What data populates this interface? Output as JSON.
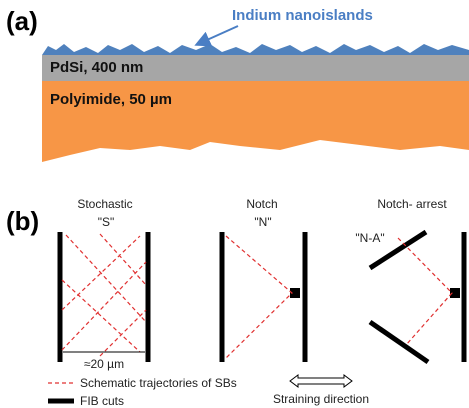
{
  "panel_a": {
    "label": "(a)",
    "islands_label": "Indium nanoislands",
    "film_label": "PdSi, 400 nm",
    "substrate_label": "Polyimide,  50 µm"
  },
  "panel_b": {
    "label": "(b)",
    "designs": [
      {
        "name": "Stochastic",
        "code": "\"S\""
      },
      {
        "name": "Notch",
        "code": "\"N\""
      },
      {
        "name": "Notch- arrest",
        "code": "\"N-A\""
      }
    ],
    "scale_label": "≈20 µm",
    "legend": {
      "trajectories": "Schematic trajectories of SBs",
      "cuts": "FIB cuts",
      "straining": "Straining direction"
    }
  }
}
